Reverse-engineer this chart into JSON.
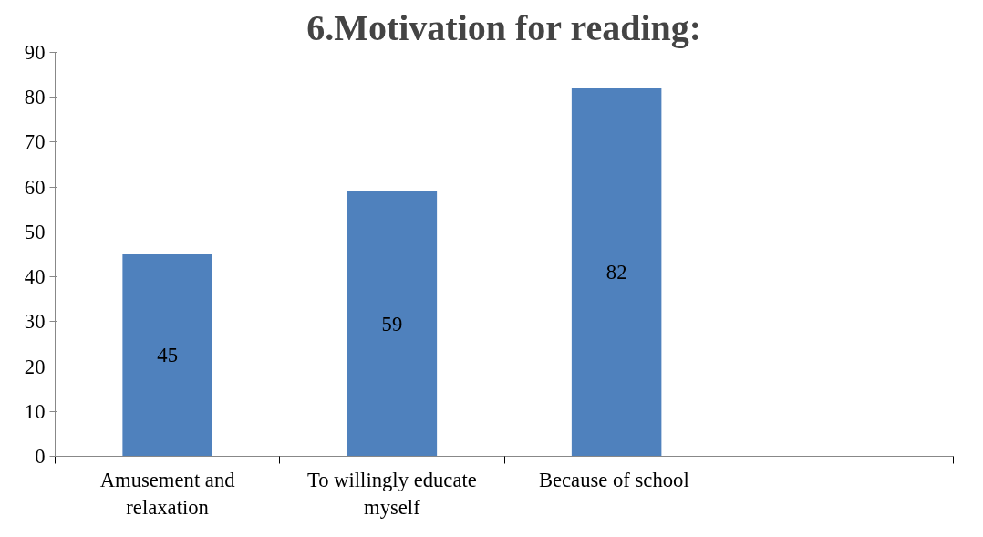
{
  "chart_data": {
    "type": "bar",
    "title": "6.Motivation for reading:",
    "categories": [
      "Amusement and relaxation",
      "To willingly educate myself",
      "Because  of school",
      null
    ],
    "values": [
      45,
      59,
      82,
      null
    ],
    "color": "#4f81bd",
    "ylim": [
      0,
      90
    ],
    "yticks": [
      0,
      10,
      20,
      30,
      40,
      50,
      60,
      70,
      80,
      90
    ],
    "grid": false,
    "data_labels": true
  }
}
